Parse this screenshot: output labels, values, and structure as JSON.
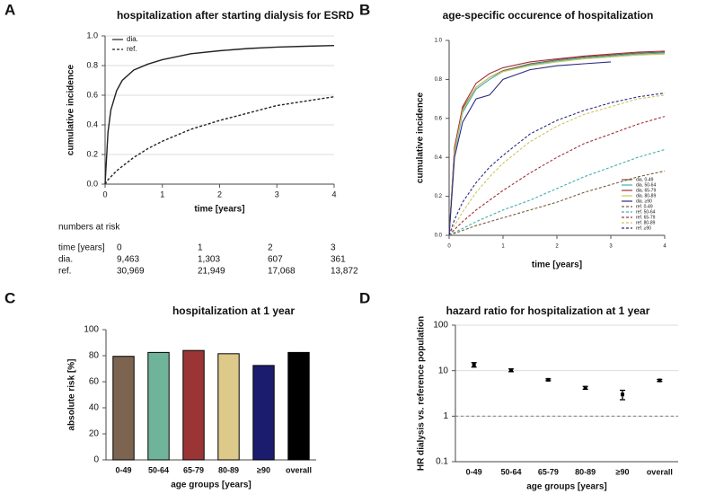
{
  "chart_data": [
    {
      "type": "line",
      "panel_label": "A",
      "title": "hospitalization after starting dialysis for ESRD",
      "xlabel": "time [years]",
      "ylabel": "cumulative incidence",
      "x": [
        0,
        0.05,
        0.1,
        0.2,
        0.3,
        0.5,
        0.75,
        1,
        1.5,
        2,
        2.5,
        3,
        3.5,
        4
      ],
      "series": [
        {
          "name": "dia.",
          "color": "#222222",
          "dash": false,
          "values": [
            0,
            0.35,
            0.5,
            0.63,
            0.7,
            0.77,
            0.81,
            0.84,
            0.88,
            0.9,
            0.915,
            0.925,
            0.93,
            0.935
          ]
        },
        {
          "name": "ref.",
          "color": "#222222",
          "dash": true,
          "values": [
            0,
            0.03,
            0.05,
            0.09,
            0.12,
            0.18,
            0.24,
            0.29,
            0.37,
            0.43,
            0.48,
            0.53,
            0.56,
            0.59
          ]
        }
      ],
      "xlim": [
        0,
        4
      ],
      "xticks": [
        0,
        1,
        2,
        3,
        4
      ],
      "ylim": [
        0,
        1
      ],
      "yticks": [
        {
          "value": 0,
          "label": "0.0"
        },
        0.2,
        0.4,
        0.6,
        0.8,
        {
          "value": 1,
          "label": "1.0"
        }
      ],
      "grid": true,
      "legend": "top-left"
    },
    {
      "type": "line",
      "panel_label": "B",
      "title": "age-specific occurence of hospitalization",
      "xlabel": "time [years]",
      "ylabel": "cumulative incidence",
      "x": [
        0,
        0.1,
        0.25,
        0.5,
        0.75,
        1,
        1.5,
        2,
        2.5,
        3,
        3.5,
        4
      ],
      "series": [
        {
          "name": "dia.  0-49",
          "color": "#7a5c3a",
          "dash": false,
          "values": [
            0,
            0.45,
            0.65,
            0.76,
            0.81,
            0.845,
            0.88,
            0.9,
            0.915,
            0.925,
            0.935,
            0.94
          ]
        },
        {
          "name": "dia.  50-64",
          "color": "#3fb0b0",
          "dash": false,
          "values": [
            0,
            0.42,
            0.63,
            0.75,
            0.8,
            0.84,
            0.875,
            0.895,
            0.91,
            0.92,
            0.93,
            0.935
          ]
        },
        {
          "name": "dia.  65-79",
          "color": "#a0303a",
          "dash": false,
          "values": [
            0,
            0.45,
            0.66,
            0.78,
            0.83,
            0.86,
            0.89,
            0.905,
            0.92,
            0.93,
            0.94,
            0.945
          ]
        },
        {
          "name": "dia.  80-89",
          "color": "#cfc55a",
          "dash": false,
          "values": [
            0,
            0.43,
            0.64,
            0.76,
            0.81,
            0.84,
            0.87,
            0.89,
            0.905,
            0.915,
            0.925,
            0.93
          ]
        },
        {
          "name": "dia.  ≥90",
          "color": "#2b2b80",
          "dash": false,
          "values": [
            0,
            0.4,
            0.58,
            0.7,
            0.72,
            0.8,
            0.85,
            0.87,
            0.88,
            0.89,
            null,
            null
          ]
        },
        {
          "name": "ref.  0-49",
          "color": "#7a5c3a",
          "dash": true,
          "values": [
            0,
            0.01,
            0.025,
            0.05,
            0.07,
            0.09,
            0.13,
            0.17,
            0.22,
            0.26,
            0.3,
            0.33
          ]
        },
        {
          "name": "ref.  50-64",
          "color": "#3fb0b0",
          "dash": true,
          "values": [
            0,
            0.015,
            0.035,
            0.07,
            0.1,
            0.13,
            0.18,
            0.24,
            0.3,
            0.35,
            0.4,
            0.44
          ]
        },
        {
          "name": "ref.  65-79",
          "color": "#a0303a",
          "dash": true,
          "values": [
            0,
            0.03,
            0.07,
            0.13,
            0.18,
            0.23,
            0.32,
            0.4,
            0.47,
            0.52,
            0.57,
            0.61
          ]
        },
        {
          "name": "ref.  80-89",
          "color": "#cfc55a",
          "dash": true,
          "values": [
            0,
            0.05,
            0.12,
            0.22,
            0.3,
            0.37,
            0.48,
            0.56,
            0.62,
            0.66,
            0.7,
            0.72
          ]
        },
        {
          "name": "ref.  ≥90",
          "color": "#2b2b80",
          "dash": true,
          "values": [
            0,
            0.08,
            0.17,
            0.27,
            0.35,
            0.41,
            0.52,
            0.59,
            0.64,
            0.68,
            0.71,
            0.73
          ]
        }
      ],
      "xlim": [
        0,
        4
      ],
      "xticks": [
        0,
        1,
        2,
        3,
        4
      ],
      "ylim": [
        0,
        1
      ],
      "yticks": [
        {
          "value": 0,
          "label": "0.0"
        },
        0.2,
        0.4,
        0.6,
        0.8,
        {
          "value": 1,
          "label": "1.0"
        }
      ],
      "grid": false,
      "legend": "bottom-right"
    },
    {
      "type": "bar",
      "panel_label": "C",
      "title": "hospitalization at 1 year",
      "xlabel": "age groups [years]",
      "ylabel": "absolute risk [%]",
      "categories": [
        "0-49",
        "50-64",
        "65-79",
        "80-89",
        "≥90",
        "overall"
      ],
      "values": [
        79.5,
        82.5,
        84,
        81.5,
        72.5,
        82.5
      ],
      "colors": [
        "#7d6450",
        "#6fb39a",
        "#9b3535",
        "#ddc98a",
        "#1c1c6e",
        "#000000"
      ],
      "ylim": [
        0,
        100
      ],
      "yticks": [
        0,
        20,
        40,
        60,
        80,
        100
      ],
      "grid": false
    },
    {
      "type": "errorbar",
      "panel_label": "D",
      "title": "hazard ratio for hospitalization at 1 year",
      "xlabel": "age groups [years]",
      "ylabel": "HR dialysis vs. reference population",
      "categories": [
        "0-49",
        "50-64",
        "65-79",
        "80-89",
        "≥90",
        "overall"
      ],
      "values": [
        13.5,
        10.2,
        6.3,
        4.2,
        3.0,
        6.1
      ],
      "errors": [
        1.5,
        0.7,
        0.3,
        0.3,
        0.7,
        0.3
      ],
      "color": "#000000",
      "log_scale": true,
      "reference_line": 1,
      "ylim": [
        0.1,
        100
      ],
      "yticks": [
        0.1,
        1,
        10,
        100
      ],
      "grid": true
    }
  ],
  "risk_table": {
    "title": "numbers at risk",
    "header": [
      "time [years]",
      "0",
      "1",
      "2",
      "3"
    ],
    "rows": [
      [
        "dia.",
        "9,463",
        "1,303",
        "607",
        "361"
      ],
      [
        "ref.",
        "30,969",
        "21,949",
        "17,068",
        "13,872"
      ]
    ]
  }
}
